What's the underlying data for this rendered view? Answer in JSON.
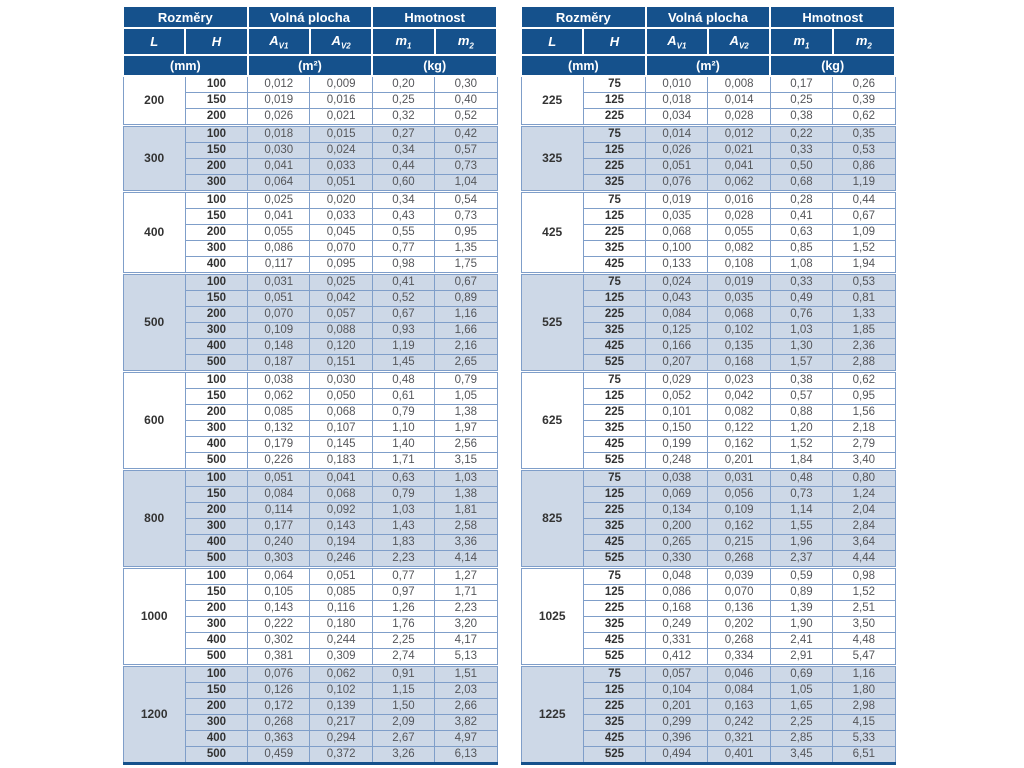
{
  "colors": {
    "header_bg": "#15518c",
    "shaded_row": "#cdd8e7",
    "grid_line": "#7f9ec9",
    "bottom_border": "#15518c",
    "data_text": "#55565a",
    "dim_text": "#333333"
  },
  "header": {
    "rozmery": "Rozměry",
    "volna_plocha": "Volná plocha",
    "hmotnost": "Hmotnost",
    "l": "L",
    "h": "H",
    "a_base": "A",
    "a_sub1": "V1",
    "a_sub2": "V2",
    "m_base": "m",
    "m_sub1": "1",
    "m_sub2": "2",
    "unit_mm": "(mm)",
    "unit_m2": "(m²)",
    "unit_kg": "(kg)"
  },
  "columns": [
    "L",
    "H",
    "AV1",
    "AV2",
    "m1",
    "m2"
  ],
  "tables": [
    {
      "side": "left",
      "groups": [
        {
          "l": "200",
          "rows": [
            [
              "100",
              "0,012",
              "0,009",
              "0,20",
              "0,30"
            ],
            [
              "150",
              "0,019",
              "0,016",
              "0,25",
              "0,40"
            ],
            [
              "200",
              "0,026",
              "0,021",
              "0,32",
              "0,52"
            ]
          ]
        },
        {
          "l": "300",
          "rows": [
            [
              "100",
              "0,018",
              "0,015",
              "0,27",
              "0,42"
            ],
            [
              "150",
              "0,030",
              "0,024",
              "0,34",
              "0,57"
            ],
            [
              "200",
              "0,041",
              "0,033",
              "0,44",
              "0,73"
            ],
            [
              "300",
              "0,064",
              "0,051",
              "0,60",
              "1,04"
            ]
          ]
        },
        {
          "l": "400",
          "rows": [
            [
              "100",
              "0,025",
              "0,020",
              "0,34",
              "0,54"
            ],
            [
              "150",
              "0,041",
              "0,033",
              "0,43",
              "0,73"
            ],
            [
              "200",
              "0,055",
              "0,045",
              "0,55",
              "0,95"
            ],
            [
              "300",
              "0,086",
              "0,070",
              "0,77",
              "1,35"
            ],
            [
              "400",
              "0,117",
              "0,095",
              "0,98",
              "1,75"
            ]
          ]
        },
        {
          "l": "500",
          "rows": [
            [
              "100",
              "0,031",
              "0,025",
              "0,41",
              "0,67"
            ],
            [
              "150",
              "0,051",
              "0,042",
              "0,52",
              "0,89"
            ],
            [
              "200",
              "0,070",
              "0,057",
              "0,67",
              "1,16"
            ],
            [
              "300",
              "0,109",
              "0,088",
              "0,93",
              "1,66"
            ],
            [
              "400",
              "0,148",
              "0,120",
              "1,19",
              "2,16"
            ],
            [
              "500",
              "0,187",
              "0,151",
              "1,45",
              "2,65"
            ]
          ]
        },
        {
          "l": "600",
          "rows": [
            [
              "100",
              "0,038",
              "0,030",
              "0,48",
              "0,79"
            ],
            [
              "150",
              "0,062",
              "0,050",
              "0,61",
              "1,05"
            ],
            [
              "200",
              "0,085",
              "0,068",
              "0,79",
              "1,38"
            ],
            [
              "300",
              "0,132",
              "0,107",
              "1,10",
              "1,97"
            ],
            [
              "400",
              "0,179",
              "0,145",
              "1,40",
              "2,56"
            ],
            [
              "500",
              "0,226",
              "0,183",
              "1,71",
              "3,15"
            ]
          ]
        },
        {
          "l": "800",
          "rows": [
            [
              "100",
              "0,051",
              "0,041",
              "0,63",
              "1,03"
            ],
            [
              "150",
              "0,084",
              "0,068",
              "0,79",
              "1,38"
            ],
            [
              "200",
              "0,114",
              "0,092",
              "1,03",
              "1,81"
            ],
            [
              "300",
              "0,177",
              "0,143",
              "1,43",
              "2,58"
            ],
            [
              "400",
              "0,240",
              "0,194",
              "1,83",
              "3,36"
            ],
            [
              "500",
              "0,303",
              "0,246",
              "2,23",
              "4,14"
            ]
          ]
        },
        {
          "l": "1000",
          "rows": [
            [
              "100",
              "0,064",
              "0,051",
              "0,77",
              "1,27"
            ],
            [
              "150",
              "0,105",
              "0,085",
              "0,97",
              "1,71"
            ],
            [
              "200",
              "0,143",
              "0,116",
              "1,26",
              "2,23"
            ],
            [
              "300",
              "0,222",
              "0,180",
              "1,76",
              "3,20"
            ],
            [
              "400",
              "0,302",
              "0,244",
              "2,25",
              "4,17"
            ],
            [
              "500",
              "0,381",
              "0,309",
              "2,74",
              "5,13"
            ]
          ]
        },
        {
          "l": "1200",
          "rows": [
            [
              "100",
              "0,076",
              "0,062",
              "0,91",
              "1,51"
            ],
            [
              "150",
              "0,126",
              "0,102",
              "1,15",
              "2,03"
            ],
            [
              "200",
              "0,172",
              "0,139",
              "1,50",
              "2,66"
            ],
            [
              "300",
              "0,268",
              "0,217",
              "2,09",
              "3,82"
            ],
            [
              "400",
              "0,363",
              "0,294",
              "2,67",
              "4,97"
            ],
            [
              "500",
              "0,459",
              "0,372",
              "3,26",
              "6,13"
            ]
          ]
        }
      ]
    },
    {
      "side": "right",
      "groups": [
        {
          "l": "225",
          "rows": [
            [
              "75",
              "0,010",
              "0,008",
              "0,17",
              "0,26"
            ],
            [
              "125",
              "0,018",
              "0,014",
              "0,25",
              "0,39"
            ],
            [
              "225",
              "0,034",
              "0,028",
              "0,38",
              "0,62"
            ]
          ]
        },
        {
          "l": "325",
          "rows": [
            [
              "75",
              "0,014",
              "0,012",
              "0,22",
              "0,35"
            ],
            [
              "125",
              "0,026",
              "0,021",
              "0,33",
              "0,53"
            ],
            [
              "225",
              "0,051",
              "0,041",
              "0,50",
              "0,86"
            ],
            [
              "325",
              "0,076",
              "0,062",
              "0,68",
              "1,19"
            ]
          ]
        },
        {
          "l": "425",
          "rows": [
            [
              "75",
              "0,019",
              "0,016",
              "0,28",
              "0,44"
            ],
            [
              "125",
              "0,035",
              "0,028",
              "0,41",
              "0,67"
            ],
            [
              "225",
              "0,068",
              "0,055",
              "0,63",
              "1,09"
            ],
            [
              "325",
              "0,100",
              "0,082",
              "0,85",
              "1,52"
            ],
            [
              "425",
              "0,133",
              "0,108",
              "1,08",
              "1,94"
            ]
          ]
        },
        {
          "l": "525",
          "rows": [
            [
              "75",
              "0,024",
              "0,019",
              "0,33",
              "0,53"
            ],
            [
              "125",
              "0,043",
              "0,035",
              "0,49",
              "0,81"
            ],
            [
              "225",
              "0,084",
              "0,068",
              "0,76",
              "1,33"
            ],
            [
              "325",
              "0,125",
              "0,102",
              "1,03",
              "1,85"
            ],
            [
              "425",
              "0,166",
              "0,135",
              "1,30",
              "2,36"
            ],
            [
              "525",
              "0,207",
              "0,168",
              "1,57",
              "2,88"
            ]
          ]
        },
        {
          "l": "625",
          "rows": [
            [
              "75",
              "0,029",
              "0,023",
              "0,38",
              "0,62"
            ],
            [
              "125",
              "0,052",
              "0,042",
              "0,57",
              "0,95"
            ],
            [
              "225",
              "0,101",
              "0,082",
              "0,88",
              "1,56"
            ],
            [
              "325",
              "0,150",
              "0,122",
              "1,20",
              "2,18"
            ],
            [
              "425",
              "0,199",
              "0,162",
              "1,52",
              "2,79"
            ],
            [
              "525",
              "0,248",
              "0,201",
              "1,84",
              "3,40"
            ]
          ]
        },
        {
          "l": "825",
          "rows": [
            [
              "75",
              "0,038",
              "0,031",
              "0,48",
              "0,80"
            ],
            [
              "125",
              "0,069",
              "0,056",
              "0,73",
              "1,24"
            ],
            [
              "225",
              "0,134",
              "0,109",
              "1,14",
              "2,04"
            ],
            [
              "325",
              "0,200",
              "0,162",
              "1,55",
              "2,84"
            ],
            [
              "425",
              "0,265",
              "0,215",
              "1,96",
              "3,64"
            ],
            [
              "525",
              "0,330",
              "0,268",
              "2,37",
              "4,44"
            ]
          ]
        },
        {
          "l": "1025",
          "rows": [
            [
              "75",
              "0,048",
              "0,039",
              "0,59",
              "0,98"
            ],
            [
              "125",
              "0,086",
              "0,070",
              "0,89",
              "1,52"
            ],
            [
              "225",
              "0,168",
              "0,136",
              "1,39",
              "2,51"
            ],
            [
              "325",
              "0,249",
              "0,202",
              "1,90",
              "3,50"
            ],
            [
              "425",
              "0,331",
              "0,268",
              "2,41",
              "4,48"
            ],
            [
              "525",
              "0,412",
              "0,334",
              "2,91",
              "5,47"
            ]
          ]
        },
        {
          "l": "1225",
          "rows": [
            [
              "75",
              "0,057",
              "0,046",
              "0,69",
              "1,16"
            ],
            [
              "125",
              "0,104",
              "0,084",
              "1,05",
              "1,80"
            ],
            [
              "225",
              "0,201",
              "0,163",
              "1,65",
              "2,98"
            ],
            [
              "325",
              "0,299",
              "0,242",
              "2,25",
              "4,15"
            ],
            [
              "425",
              "0,396",
              "0,321",
              "2,85",
              "5,33"
            ],
            [
              "525",
              "0,494",
              "0,401",
              "3,45",
              "6,51"
            ]
          ]
        }
      ]
    }
  ]
}
